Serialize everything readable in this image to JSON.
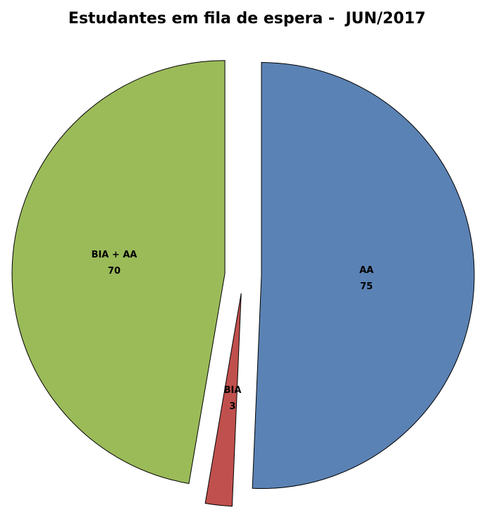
{
  "chart_data": {
    "type": "pie",
    "title": "Estudantes em fila de espera -  JUN/2017",
    "exploded": true,
    "start": "top, clockwise",
    "slices": [
      {
        "label": "AA",
        "value": 75,
        "color": "#5b82b4"
      },
      {
        "label": "BIA",
        "value": 3,
        "color": "#c0504d"
      },
      {
        "label": "BIA + AA",
        "value": 70,
        "color": "#9bbb59"
      }
    ]
  }
}
